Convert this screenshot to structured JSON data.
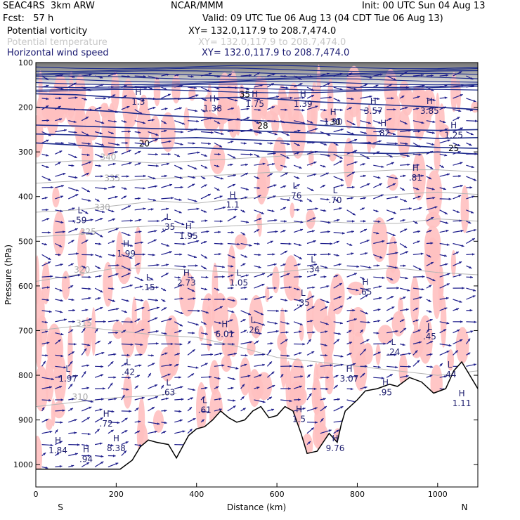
{
  "header": {
    "model_line1": "SEAC4RS  3km ARW",
    "model_line2": "Fcst:   57 h",
    "center_name": "NCAR/MMM",
    "init": "Init: 00 UTC Sun 04 Aug 13",
    "valid": "Valid: 09 UTC Tue 06 Aug 13 (04 CDT Tue 06 Aug 13)"
  },
  "fields": [
    {
      "name": "Potential vorticity",
      "xy": "XY= 132.0,117.9 to 208.7,474.0",
      "color": "#000000"
    },
    {
      "name": "Potential temperature",
      "xy": "XY= 132.0,117.9 to 208.7,474.0",
      "color": "#c8c8c8"
    },
    {
      "name": "Horizontal wind speed",
      "xy": "XY= 132.0,117.9 to 208.7,474.0",
      "color": "#191970"
    }
  ],
  "chart_data": {
    "type": "cross-section",
    "xlabel": "Distance (km)",
    "ylabel": "Pressure (hPa)",
    "xlim": [
      0,
      1100
    ],
    "ylim": [
      1050,
      100
    ],
    "x_ticks": [
      0,
      200,
      400,
      600,
      800,
      1000
    ],
    "y_ticks": [
      100,
      200,
      300,
      400,
      500,
      600,
      700,
      800,
      900,
      1000
    ],
    "x_end_labels": {
      "left": "S",
      "right": "N"
    },
    "colors": {
      "pv_fill": "#ffc0c0",
      "theta": "#b4b4b4",
      "wind": "#1e1e8c",
      "terrain": "#000000",
      "speed_contour": "#1e2d8c"
    },
    "theta_contours": [
      {
        "label": "310",
        "label_at": [
          110,
          855
        ],
        "points": [
          [
            0,
            870
          ],
          [
            100,
            860
          ],
          [
            200,
            850
          ],
          [
            300,
            845
          ],
          [
            350,
            840
          ]
        ]
      },
      {
        "label": "315",
        "label_at": [
          120,
          690
        ],
        "points": [
          [
            0,
            700
          ],
          [
            100,
            690
          ],
          [
            200,
            700
          ],
          [
            300,
            710
          ],
          [
            400,
            715
          ],
          [
            500,
            735
          ],
          [
            600,
            760
          ],
          [
            700,
            770
          ],
          [
            800,
            780
          ],
          [
            900,
            790
          ],
          [
            1000,
            800
          ],
          [
            1100,
            790
          ]
        ]
      },
      {
        "label": "320",
        "label_at": [
          115,
          570
        ],
        "points": [
          [
            0,
            590
          ],
          [
            100,
            575
          ],
          [
            200,
            560
          ],
          [
            300,
            560
          ],
          [
            400,
            565
          ],
          [
            500,
            570
          ],
          [
            600,
            570
          ],
          [
            700,
            560
          ],
          [
            800,
            565
          ],
          [
            900,
            560
          ],
          [
            1000,
            570
          ],
          [
            1100,
            575
          ]
        ]
      },
      {
        "label": "325",
        "label_at": [
          130,
          485
        ],
        "points": [
          [
            0,
            490
          ],
          [
            100,
            485
          ],
          [
            200,
            470
          ],
          [
            300,
            465
          ],
          [
            400,
            470
          ],
          [
            500,
            465
          ],
          [
            600,
            460
          ],
          [
            700,
            455
          ],
          [
            800,
            460
          ],
          [
            900,
            460
          ],
          [
            1000,
            450
          ],
          [
            1100,
            455
          ]
        ]
      },
      {
        "label": "330",
        "label_at": [
          165,
          430
        ],
        "points": [
          [
            0,
            435
          ],
          [
            100,
            430
          ],
          [
            200,
            420
          ],
          [
            300,
            410
          ],
          [
            400,
            415
          ],
          [
            500,
            405
          ],
          [
            600,
            400
          ],
          [
            700,
            395
          ],
          [
            800,
            400
          ],
          [
            900,
            395
          ],
          [
            1000,
            390
          ],
          [
            1100,
            395
          ]
        ]
      },
      {
        "label": "335",
        "label_at": [
          190,
          365
        ],
        "points": [
          [
            0,
            370
          ],
          [
            100,
            365
          ],
          [
            200,
            365
          ],
          [
            300,
            360
          ],
          [
            400,
            355
          ],
          [
            500,
            350
          ],
          [
            600,
            345
          ],
          [
            700,
            350
          ],
          [
            800,
            345
          ],
          [
            900,
            340
          ],
          [
            1000,
            340
          ],
          [
            1100,
            345
          ]
        ]
      },
      {
        "label": "340",
        "label_at": [
          180,
          318
        ],
        "points": [
          [
            0,
            325
          ],
          [
            100,
            320
          ],
          [
            200,
            320
          ],
          [
            300,
            325
          ],
          [
            400,
            320
          ],
          [
            500,
            315
          ],
          [
            600,
            310
          ],
          [
            700,
            305
          ],
          [
            800,
            310
          ],
          [
            900,
            310
          ],
          [
            1000,
            300
          ],
          [
            1100,
            305
          ]
        ]
      }
    ],
    "speed_contours": [
      {
        "label": "20",
        "label_at": [
          270,
          288
        ],
        "points": [
          [
            0,
            280
          ],
          [
            100,
            285
          ],
          [
            200,
            290
          ],
          [
            300,
            292
          ],
          [
            400,
            290
          ],
          [
            500,
            295
          ],
          [
            600,
            300
          ],
          [
            700,
            300
          ],
          [
            800,
            302
          ],
          [
            900,
            304
          ],
          [
            1000,
            300
          ],
          [
            1100,
            305
          ]
        ]
      },
      {
        "label": "25",
        "label_at": [
          1040,
          298
        ],
        "points": [
          [
            0,
            260
          ],
          [
            100,
            262
          ],
          [
            200,
            268
          ],
          [
            300,
            270
          ],
          [
            400,
            268
          ],
          [
            500,
            272
          ],
          [
            600,
            275
          ],
          [
            700,
            278
          ],
          [
            800,
            280
          ],
          [
            900,
            285
          ],
          [
            1000,
            290
          ],
          [
            1100,
            292
          ]
        ]
      },
      {
        "label": "28",
        "label_at": [
          565,
          248
        ],
        "points": [
          [
            0,
            240
          ],
          [
            100,
            242
          ],
          [
            200,
            245
          ],
          [
            300,
            248
          ],
          [
            400,
            250
          ],
          [
            500,
            252
          ],
          [
            600,
            255
          ],
          [
            700,
            258
          ],
          [
            800,
            262
          ],
          [
            900,
            265
          ],
          [
            1000,
            270
          ],
          [
            1100,
            268
          ]
        ]
      },
      {
        "label": "30",
        "label_at": [
          745,
          240
        ],
        "points": [
          [
            0,
            200
          ],
          [
            100,
            205
          ],
          [
            200,
            210
          ],
          [
            300,
            218
          ],
          [
            400,
            222
          ],
          [
            500,
            228
          ],
          [
            600,
            232
          ],
          [
            700,
            240
          ],
          [
            800,
            245
          ],
          [
            900,
            250
          ],
          [
            1000,
            252
          ],
          [
            1100,
            250
          ]
        ]
      },
      {
        "label": "35",
        "label_at": [
          520,
          178
        ],
        "points": [
          [
            0,
            170
          ],
          [
            100,
            172
          ],
          [
            200,
            178
          ],
          [
            300,
            182
          ],
          [
            400,
            180
          ],
          [
            500,
            178
          ],
          [
            600,
            182
          ],
          [
            700,
            188
          ],
          [
            800,
            192
          ],
          [
            900,
            196
          ],
          [
            1000,
            200
          ],
          [
            1100,
            205
          ]
        ]
      }
    ],
    "pv_extrema": [
      {
        "kind": "L",
        "value": "1.97",
        "x": 80,
        "p": 805
      },
      {
        "kind": "L",
        "value": ".42",
        "x": 230,
        "p": 790
      },
      {
        "kind": "L",
        "value": ".63",
        "x": 330,
        "p": 835
      },
      {
        "kind": "L",
        "value": ".61",
        "x": 420,
        "p": 875
      },
      {
        "kind": "L",
        "value": ".15",
        "x": 280,
        "p": 600
      },
      {
        "kind": "L",
        "value": ".59",
        "x": 110,
        "p": 450
      },
      {
        "kind": "L",
        "value": ".35",
        "x": 330,
        "p": 465
      },
      {
        "kind": "L",
        "value": "1.05",
        "x": 505,
        "p": 590
      },
      {
        "kind": "L",
        "value": ".34",
        "x": 690,
        "p": 560
      },
      {
        "kind": "L",
        "value": ".76",
        "x": 645,
        "p": 395
      },
      {
        "kind": "L",
        "value": ".70",
        "x": 745,
        "p": 405
      },
      {
        "kind": "L",
        "value": ".24",
        "x": 890,
        "p": 745
      },
      {
        "kind": "L",
        "value": ".45",
        "x": 980,
        "p": 710
      },
      {
        "kind": "L",
        "value": ".44",
        "x": 1030,
        "p": 795
      },
      {
        "kind": "L",
        "value": ".26",
        "x": 540,
        "p": 695
      },
      {
        "kind": "L",
        "value": ".35",
        "x": 665,
        "p": 635
      },
      {
        "kind": "H",
        "value": "1.99",
        "x": 225,
        "p": 525
      },
      {
        "kind": "H",
        "value": "2.73",
        "x": 375,
        "p": 590
      },
      {
        "kind": "H",
        "value": "6.01",
        "x": 470,
        "p": 705
      },
      {
        "kind": "H",
        "value": ".65",
        "x": 820,
        "p": 610
      },
      {
        "kind": "H",
        "value": "1.1",
        "x": 490,
        "p": 415
      },
      {
        "kind": "H",
        "value": "1.95",
        "x": 380,
        "p": 485
      },
      {
        "kind": "H",
        "value": ".81",
        "x": 945,
        "p": 355
      },
      {
        "kind": "H",
        "value": "3.07",
        "x": 780,
        "p": 805
      },
      {
        "kind": "H",
        "value": ".72",
        "x": 175,
        "p": 905
      },
      {
        "kind": "H",
        "value": "8.38",
        "x": 200,
        "p": 960
      },
      {
        "kind": "H",
        "value": ".94",
        "x": 125,
        "p": 985
      },
      {
        "kind": "H",
        "value": "1.84",
        "x": 55,
        "p": 965
      },
      {
        "kind": "H",
        "value": "9.76",
        "x": 745,
        "p": 960
      },
      {
        "kind": "H",
        "value": ".82",
        "x": 865,
        "p": 255
      },
      {
        "kind": "H",
        "value": "1.25",
        "x": 1040,
        "p": 260
      },
      {
        "kind": "H",
        "value": "1.38",
        "x": 440,
        "p": 200
      },
      {
        "kind": "H",
        "value": "1.75",
        "x": 545,
        "p": 190
      },
      {
        "kind": "H",
        "value": "1.3",
        "x": 255,
        "p": 185
      },
      {
        "kind": "H",
        "value": "3.57",
        "x": 840,
        "p": 205
      },
      {
        "kind": "H",
        "value": "3.85",
        "x": 980,
        "p": 205
      },
      {
        "kind": "H",
        "value": "1.50",
        "x": 740,
        "p": 230
      },
      {
        "kind": "H",
        "value": "1.39",
        "x": 665,
        "p": 190
      },
      {
        "kind": "H",
        "value": "1.5",
        "x": 655,
        "p": 895
      },
      {
        "kind": "H",
        "value": ".95",
        "x": 870,
        "p": 835
      },
      {
        "kind": "H",
        "value": "1.11",
        "x": 1060,
        "p": 860
      }
    ],
    "terrain_profile": [
      [
        0,
        1010
      ],
      [
        210,
        1010
      ],
      [
        240,
        990
      ],
      [
        260,
        960
      ],
      [
        280,
        945
      ],
      [
        300,
        950
      ],
      [
        330,
        955
      ],
      [
        350,
        985
      ],
      [
        365,
        960
      ],
      [
        380,
        935
      ],
      [
        400,
        920
      ],
      [
        420,
        915
      ],
      [
        440,
        900
      ],
      [
        460,
        880
      ],
      [
        480,
        895
      ],
      [
        500,
        905
      ],
      [
        520,
        900
      ],
      [
        540,
        880
      ],
      [
        560,
        870
      ],
      [
        580,
        895
      ],
      [
        600,
        890
      ],
      [
        620,
        870
      ],
      [
        640,
        880
      ],
      [
        660,
        930
      ],
      [
        675,
        975
      ],
      [
        700,
        970
      ],
      [
        730,
        930
      ],
      [
        750,
        950
      ],
      [
        760,
        910
      ],
      [
        770,
        880
      ],
      [
        800,
        855
      ],
      [
        820,
        835
      ],
      [
        850,
        830
      ],
      [
        880,
        820
      ],
      [
        900,
        825
      ],
      [
        930,
        805
      ],
      [
        960,
        815
      ],
      [
        990,
        840
      ],
      [
        1020,
        830
      ],
      [
        1040,
        790
      ],
      [
        1060,
        770
      ],
      [
        1080,
        800
      ],
      [
        1100,
        830
      ]
    ]
  }
}
